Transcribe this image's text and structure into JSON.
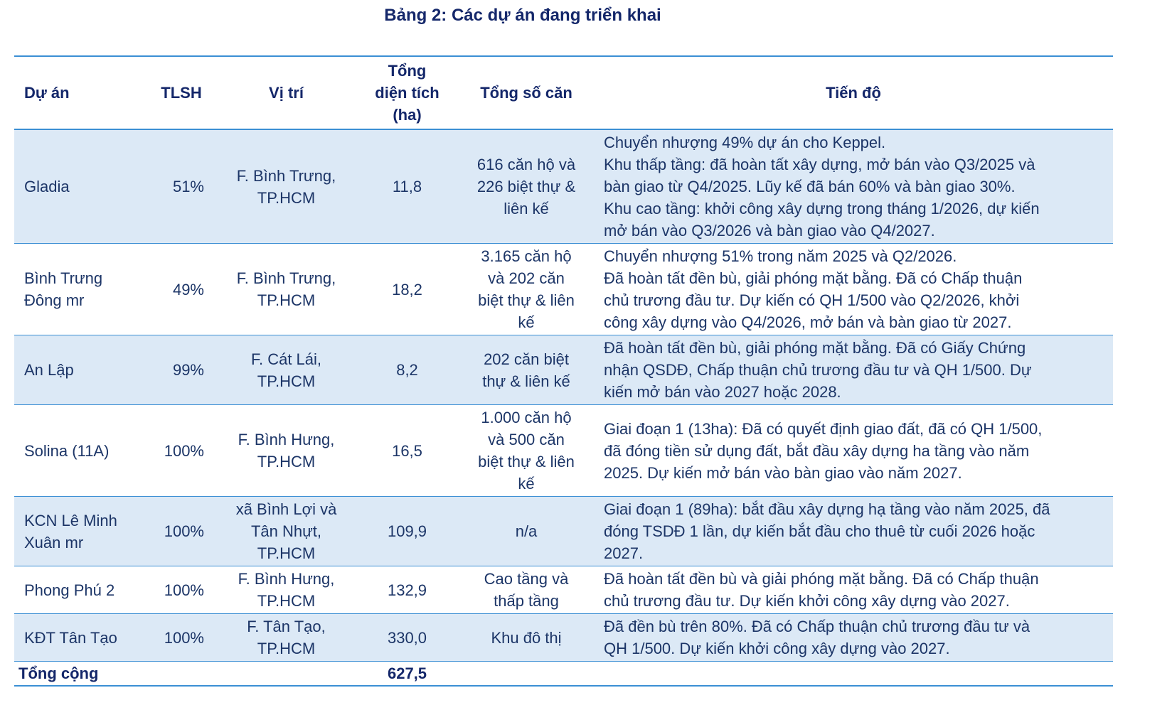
{
  "title": "Bảng 2: Các dự án đang triển khai",
  "table": {
    "headers": {
      "project": [
        "Dự án"
      ],
      "tlsh": [
        "TLSH"
      ],
      "location": [
        "Vị trí"
      ],
      "area": [
        "Tổng",
        "diện tích",
        "(ha)"
      ],
      "units": [
        "Tổng số căn"
      ],
      "progress": [
        "Tiến độ"
      ]
    },
    "rows": [
      {
        "project": [
          "Gladia"
        ],
        "tlsh": "51%",
        "location": [
          "F. Bình Trưng,",
          "TP.HCM"
        ],
        "area": "11,8",
        "units": [
          "616 căn hộ và",
          "226 biệt thự &",
          "liên kế"
        ],
        "progress": [
          "Chuyển nhượng 49% dự án cho Keppel.",
          "Khu thấp tầng: đã hoàn tất xây dựng, mở bán vào Q3/2025 và",
          "bàn giao từ Q4/2025. Lũy kế đã bán 60% và bàn giao 30%.",
          "Khu cao tầng: khởi công xây dựng trong tháng 1/2026, dự kiến",
          "mở bán vào Q3/2026 và bàn giao vào Q4/2027."
        ]
      },
      {
        "project": [
          "Bình Trưng",
          "Đông mr"
        ],
        "tlsh": "49%",
        "location": [
          "F. Bình Trưng,",
          "TP.HCM"
        ],
        "area": "18,2",
        "units": [
          "3.165 căn hộ",
          "và 202 căn",
          "biệt thự & liên",
          "kế"
        ],
        "progress": [
          "Chuyển nhượng 51% trong năm 2025 và Q2/2026.",
          "Đã hoàn tất đền bù, giải phóng mặt bằng. Đã có Chấp thuận",
          "chủ trương đầu tư. Dự kiến có QH 1/500 vào Q2/2026, khởi",
          "công xây dựng vào Q4/2026, mở bán và bàn giao từ 2027."
        ]
      },
      {
        "project": [
          "An Lập"
        ],
        "tlsh": "99%",
        "location": [
          "F. Cát Lái,",
          "TP.HCM"
        ],
        "area": "8,2",
        "units": [
          "202 căn biệt",
          "thự & liên kế"
        ],
        "progress": [
          "Đã hoàn tất đền bù, giải phóng mặt bằng. Đã có Giấy Chứng",
          "nhận QSDĐ, Chấp thuận chủ trương đầu tư và QH 1/500. Dự",
          "kiến mở bán vào 2027 hoặc 2028."
        ]
      },
      {
        "project": [
          "Solina (11A)"
        ],
        "tlsh": "100%",
        "location": [
          "F. Bình Hưng,",
          "TP.HCM"
        ],
        "area": "16,5",
        "units": [
          "1.000 căn hộ",
          "và 500 căn",
          "biệt thự & liên",
          "kế"
        ],
        "progress": [
          "Giai đoạn 1 (13ha):  Đã có quyết định giao đất, đã có QH 1/500,",
          "đã đóng tiền sử dụng đất, bắt đầu xây dựng ha tầng vào năm",
          "2025. Dự kiến mở bán vào bàn giao vào năm 2027."
        ]
      },
      {
        "project": [
          "KCN Lê Minh",
          "Xuân mr"
        ],
        "tlsh": "100%",
        "location": [
          "xã Bình Lợi và",
          "Tân Nhựt,",
          "TP.HCM"
        ],
        "area": "109,9",
        "units": [
          "n/a"
        ],
        "progress": [
          "Giai đoạn 1 (89ha): bắt đầu xây dựng hạ tầng vào năm 2025, đã",
          "đóng TSDĐ 1 lần, dự kiến bắt đầu cho thuê từ cuối 2026 hoặc",
          "2027."
        ]
      },
      {
        "project": [
          "Phong Phú 2"
        ],
        "tlsh": "100%",
        "location": [
          "F. Bình Hưng,",
          "TP.HCM"
        ],
        "area": "132,9",
        "units": [
          "Cao tầng và",
          "thấp tầng"
        ],
        "progress": [
          "Đã hoàn tất đền bù và giải phóng mặt bằng.  Đã có Chấp thuận",
          "chủ trương đầu tư. Dự kiến khởi công xây dựng vào 2027."
        ]
      },
      {
        "project": [
          "KĐT Tân Tạo"
        ],
        "tlsh": "100%",
        "location": [
          "F. Tân Tạo,",
          "TP.HCM"
        ],
        "area": "330,0",
        "units": [
          "Khu đô thị"
        ],
        "progress": [
          "Đã đền bù trên 80%. Đã có Chấp thuận chủ trương đầu tư và",
          "QH 1/500. Dự kiến khởi công xây dựng vào 2027."
        ]
      }
    ],
    "total": {
      "label": "Tổng cộng",
      "area": "627,5"
    }
  }
}
